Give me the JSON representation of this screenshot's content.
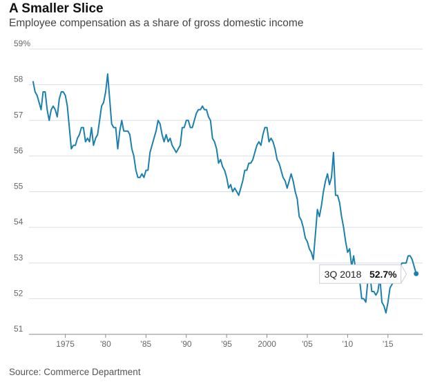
{
  "header": {
    "title": "A Smaller Slice",
    "subtitle": "Employee compensation as a share of gross domestic income"
  },
  "footer": {
    "source": "Source: Commerce Department"
  },
  "colors": {
    "line": "#1b7fae",
    "grid": "#d8dde4",
    "axis": "#888888"
  },
  "chart_data": {
    "type": "line",
    "title": "A Smaller Slice",
    "subtitle": "Employee compensation as a share of gross domestic income",
    "xlabel": "",
    "ylabel": "",
    "ylim": [
      51,
      59
    ],
    "xlim": [
      1970.5,
      2019.3
    ],
    "yticks": [
      51,
      52,
      53,
      54,
      55,
      56,
      57,
      58,
      59
    ],
    "ytick_labels": [
      "51",
      "52",
      "53",
      "54",
      "55",
      "56",
      "57",
      "58",
      "59%"
    ],
    "xticks": [
      1975,
      1980,
      1985,
      1990,
      1995,
      2000,
      2005,
      2010,
      2015
    ],
    "xtick_labels": [
      "1975",
      "'80",
      "'85",
      "'90",
      "'95",
      "2000",
      "'05",
      "'10",
      "'15"
    ],
    "grid": "horizontal",
    "annotation": {
      "label": "3Q 2018",
      "value": "52.7%",
      "x": 2018.5,
      "y": 52.7
    },
    "series": [
      {
        "values": [
          [
            1971.0,
            58.1
          ],
          [
            1971.25,
            57.8
          ],
          [
            1971.5,
            57.7
          ],
          [
            1971.75,
            57.5
          ],
          [
            1972.0,
            57.3
          ],
          [
            1972.25,
            57.8
          ],
          [
            1972.5,
            57.8
          ],
          [
            1972.75,
            57.3
          ],
          [
            1973.0,
            57.0
          ],
          [
            1973.25,
            57.3
          ],
          [
            1973.5,
            57.4
          ],
          [
            1973.75,
            57.3
          ],
          [
            1974.0,
            57.1
          ],
          [
            1974.25,
            57.6
          ],
          [
            1974.5,
            57.8
          ],
          [
            1974.75,
            57.8
          ],
          [
            1975.0,
            57.7
          ],
          [
            1975.25,
            57.4
          ],
          [
            1975.5,
            56.8
          ],
          [
            1975.75,
            56.2
          ],
          [
            1976.0,
            56.3
          ],
          [
            1976.25,
            56.3
          ],
          [
            1976.5,
            56.5
          ],
          [
            1976.75,
            56.6
          ],
          [
            1977.0,
            56.8
          ],
          [
            1977.25,
            56.8
          ],
          [
            1977.5,
            56.4
          ],
          [
            1977.75,
            56.5
          ],
          [
            1978.0,
            56.4
          ],
          [
            1978.25,
            56.8
          ],
          [
            1978.5,
            56.3
          ],
          [
            1978.75,
            56.5
          ],
          [
            1979.0,
            56.6
          ],
          [
            1979.25,
            57.0
          ],
          [
            1979.5,
            57.4
          ],
          [
            1979.75,
            57.5
          ],
          [
            1980.0,
            57.8
          ],
          [
            1980.25,
            58.3
          ],
          [
            1980.5,
            57.6
          ],
          [
            1980.75,
            56.9
          ],
          [
            1981.0,
            56.8
          ],
          [
            1981.25,
            56.8
          ],
          [
            1981.5,
            56.2
          ],
          [
            1981.75,
            56.7
          ],
          [
            1982.0,
            57.0
          ],
          [
            1982.25,
            56.7
          ],
          [
            1982.5,
            56.7
          ],
          [
            1982.75,
            56.7
          ],
          [
            1983.0,
            56.6
          ],
          [
            1983.25,
            56.2
          ],
          [
            1983.5,
            56.0
          ],
          [
            1983.75,
            55.6
          ],
          [
            1984.0,
            55.4
          ],
          [
            1984.25,
            55.4
          ],
          [
            1984.5,
            55.5
          ],
          [
            1984.75,
            55.4
          ],
          [
            1985.0,
            55.6
          ],
          [
            1985.25,
            55.6
          ],
          [
            1985.5,
            56.1
          ],
          [
            1985.75,
            56.3
          ],
          [
            1986.0,
            56.5
          ],
          [
            1986.25,
            56.7
          ],
          [
            1986.5,
            57.0
          ],
          [
            1986.75,
            56.9
          ],
          [
            1987.0,
            56.6
          ],
          [
            1987.25,
            56.4
          ],
          [
            1987.5,
            56.6
          ],
          [
            1987.75,
            56.4
          ],
          [
            1988.0,
            56.5
          ],
          [
            1988.25,
            56.3
          ],
          [
            1988.5,
            56.2
          ],
          [
            1988.75,
            56.1
          ],
          [
            1989.0,
            56.2
          ],
          [
            1989.25,
            56.3
          ],
          [
            1989.5,
            56.8
          ],
          [
            1989.75,
            56.8
          ],
          [
            1990.0,
            57.0
          ],
          [
            1990.25,
            57.0
          ],
          [
            1990.5,
            56.8
          ],
          [
            1990.75,
            56.8
          ],
          [
            1991.0,
            57.0
          ],
          [
            1991.25,
            57.2
          ],
          [
            1991.5,
            57.3
          ],
          [
            1991.75,
            57.3
          ],
          [
            1992.0,
            57.4
          ],
          [
            1992.25,
            57.3
          ],
          [
            1992.5,
            57.3
          ],
          [
            1992.75,
            57.1
          ],
          [
            1993.0,
            57.0
          ],
          [
            1993.25,
            56.5
          ],
          [
            1993.5,
            56.4
          ],
          [
            1993.75,
            56.2
          ],
          [
            1994.0,
            55.8
          ],
          [
            1994.25,
            55.9
          ],
          [
            1994.5,
            55.7
          ],
          [
            1994.75,
            55.6
          ],
          [
            1995.0,
            55.4
          ],
          [
            1995.25,
            55.1
          ],
          [
            1995.5,
            55.2
          ],
          [
            1995.75,
            55.0
          ],
          [
            1996.0,
            55.1
          ],
          [
            1996.25,
            55.0
          ],
          [
            1996.5,
            54.9
          ],
          [
            1996.75,
            55.1
          ],
          [
            1997.0,
            55.3
          ],
          [
            1997.25,
            55.6
          ],
          [
            1997.5,
            55.6
          ],
          [
            1997.75,
            55.8
          ],
          [
            1998.0,
            55.8
          ],
          [
            1998.25,
            55.9
          ],
          [
            1998.5,
            56.1
          ],
          [
            1998.75,
            56.3
          ],
          [
            1999.0,
            56.4
          ],
          [
            1999.25,
            56.3
          ],
          [
            1999.5,
            56.6
          ],
          [
            1999.75,
            56.8
          ],
          [
            2000.0,
            56.8
          ],
          [
            2000.25,
            56.4
          ],
          [
            2000.5,
            56.5
          ],
          [
            2000.75,
            56.4
          ],
          [
            2001.0,
            56.2
          ],
          [
            2001.25,
            55.9
          ],
          [
            2001.5,
            55.8
          ],
          [
            2001.75,
            55.6
          ],
          [
            2002.0,
            55.4
          ],
          [
            2002.25,
            55.3
          ],
          [
            2002.5,
            55.1
          ],
          [
            2002.75,
            55.3
          ],
          [
            2003.0,
            55.5
          ],
          [
            2003.25,
            55.3
          ],
          [
            2003.5,
            55.0
          ],
          [
            2003.75,
            54.8
          ],
          [
            2004.0,
            54.3
          ],
          [
            2004.25,
            54.2
          ],
          [
            2004.5,
            54.0
          ],
          [
            2004.75,
            53.7
          ],
          [
            2005.0,
            53.6
          ],
          [
            2005.25,
            53.4
          ],
          [
            2005.5,
            53.3
          ],
          [
            2005.75,
            53.1
          ],
          [
            2006.0,
            53.8
          ],
          [
            2006.25,
            54.5
          ],
          [
            2006.5,
            54.3
          ],
          [
            2006.75,
            54.6
          ],
          [
            2007.0,
            55.0
          ],
          [
            2007.25,
            55.3
          ],
          [
            2007.5,
            55.5
          ],
          [
            2007.75,
            55.2
          ],
          [
            2008.0,
            55.4
          ],
          [
            2008.25,
            56.1
          ],
          [
            2008.5,
            54.9
          ],
          [
            2008.75,
            54.9
          ],
          [
            2009.0,
            54.7
          ],
          [
            2009.25,
            54.3
          ],
          [
            2009.5,
            54.0
          ],
          [
            2009.75,
            53.6
          ],
          [
            2010.0,
            53.3
          ],
          [
            2010.25,
            53.4
          ],
          [
            2010.5,
            52.9
          ],
          [
            2010.75,
            53.2
          ],
          [
            2011.0,
            52.8
          ],
          [
            2011.25,
            52.6
          ],
          [
            2011.5,
            52.5
          ],
          [
            2011.75,
            52.0
          ],
          [
            2012.0,
            52.0
          ],
          [
            2012.25,
            51.9
          ],
          [
            2012.5,
            52.5
          ],
          [
            2012.75,
            52.7
          ],
          [
            2013.0,
            52.2
          ],
          [
            2013.25,
            52.2
          ],
          [
            2013.5,
            52.1
          ],
          [
            2013.75,
            52.2
          ],
          [
            2014.0,
            52.6
          ],
          [
            2014.25,
            51.9
          ],
          [
            2014.5,
            51.8
          ],
          [
            2014.75,
            51.6
          ],
          [
            2015.0,
            51.9
          ],
          [
            2015.25,
            52.3
          ],
          [
            2015.5,
            52.4
          ],
          [
            2015.75,
            52.5
          ],
          [
            2016.0,
            52.7
          ],
          [
            2016.25,
            52.7
          ],
          [
            2016.5,
            52.9
          ],
          [
            2016.75,
            53.0
          ],
          [
            2017.0,
            53.0
          ],
          [
            2017.25,
            53.0
          ],
          [
            2017.5,
            53.2
          ],
          [
            2017.75,
            53.2
          ],
          [
            2018.0,
            53.1
          ],
          [
            2018.25,
            52.9
          ],
          [
            2018.5,
            52.7
          ]
        ]
      }
    ]
  }
}
